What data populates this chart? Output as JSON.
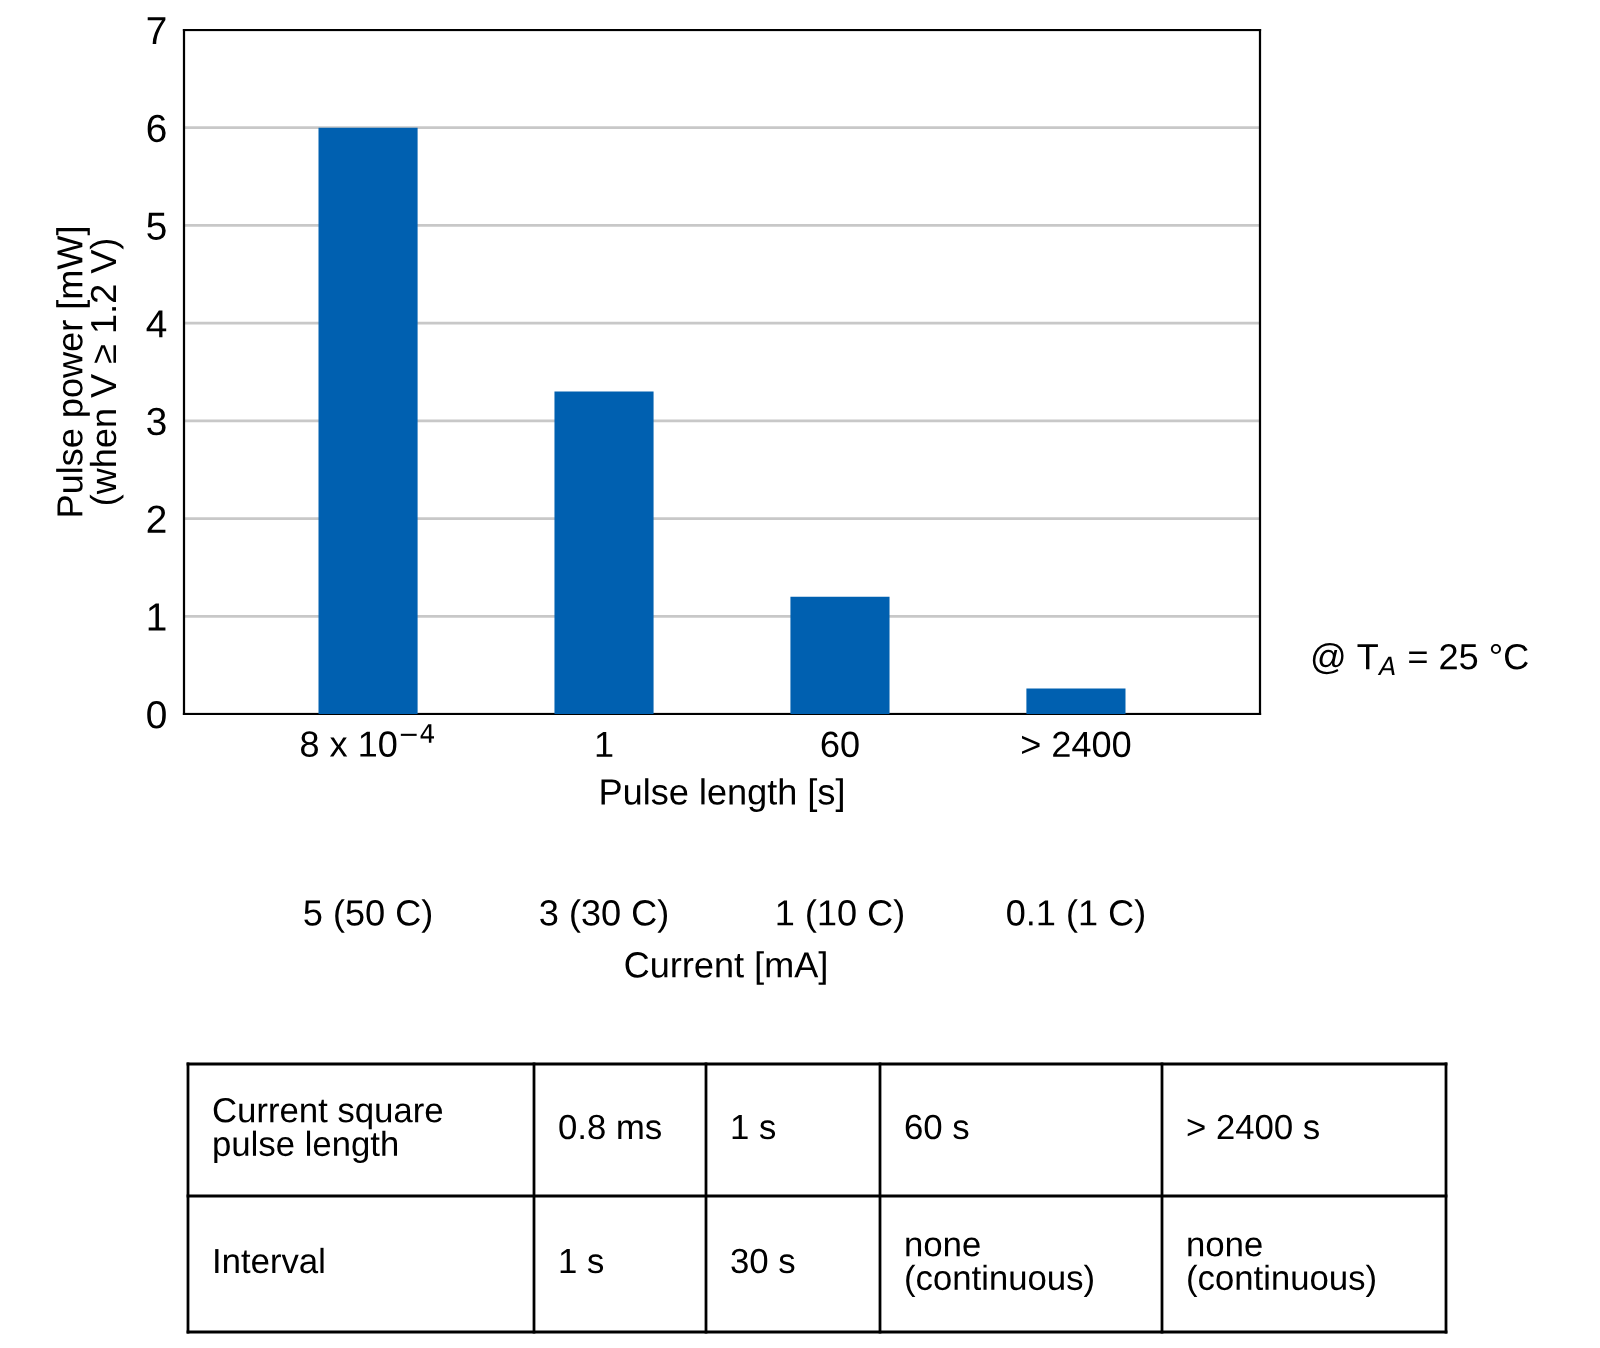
{
  "chart_data": {
    "type": "bar",
    "categories": [
      "8 x 10$^{−4}$",
      "1",
      "60",
      "> 2400"
    ],
    "values": [
      6.0,
      3.3,
      1.2,
      0.26
    ],
    "color": "#0060b0",
    "xlabel": "Pulse length [s]",
    "ylabel": "Pulse power [mW]\n(when V ≥ 1.2 V)",
    "ylim": [
      0,
      7
    ],
    "yticks": [
      0,
      1,
      2,
      3,
      4,
      5,
      6,
      7
    ],
    "grid": "y",
    "annotations": [
      "@ T$_{A}$ = 25 °C",
      "5 (50 C)",
      "3 (30 C)",
      "1 (10 C)",
      "0.1 (1 C)",
      "Current [mA]",
      "Current square\npulse length",
      "0.8 ms",
      "1 s",
      "60 s",
      "> 2400 s",
      "Interval",
      "1 s",
      "30 s",
      "none\n(continuous)",
      "none\n(continuous)"
    ]
  }
}
